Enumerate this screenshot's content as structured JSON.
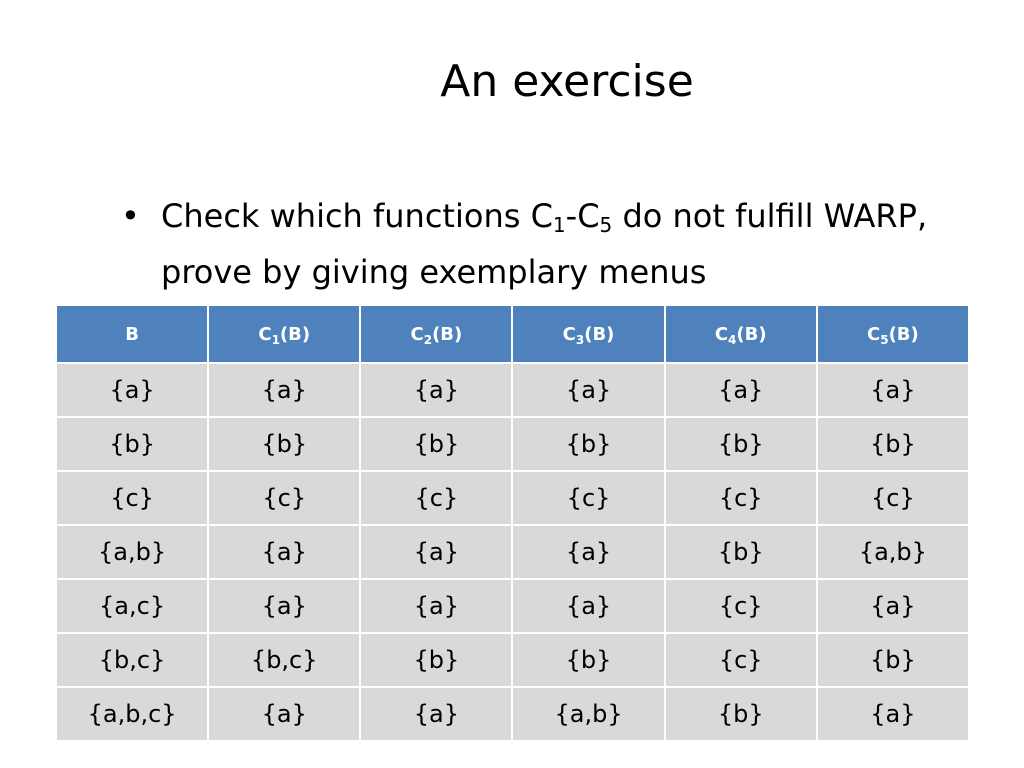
{
  "slide": {
    "title": "An exercise",
    "bullet": {
      "marker": "•",
      "part1": "Check which functions C",
      "sub1": "1",
      "part2": "-C",
      "sub2": "5",
      "part3": " do not fulfill WARP, prove by giving exemplary menus"
    }
  },
  "table": {
    "headers": [
      {
        "main": "B",
        "sub": "",
        "suffix": ""
      },
      {
        "main": "C",
        "sub": "1",
        "suffix": "(B)"
      },
      {
        "main": "C",
        "sub": "2",
        "suffix": "(B)"
      },
      {
        "main": "C",
        "sub": "3",
        "suffix": "(B)"
      },
      {
        "main": "C",
        "sub": "4",
        "suffix": "(B)"
      },
      {
        "main": "C",
        "sub": "5",
        "suffix": "(B)"
      }
    ],
    "rows": [
      [
        "{a}",
        "{a}",
        "{a}",
        "{a}",
        "{a}",
        "{a}"
      ],
      [
        "{b}",
        "{b}",
        "{b}",
        "{b}",
        "{b}",
        "{b}"
      ],
      [
        "{c}",
        "{c}",
        "{c}",
        "{c}",
        "{c}",
        "{c}"
      ],
      [
        "{a,b}",
        "{a}",
        "{a}",
        "{a}",
        "{b}",
        "{a,b}"
      ],
      [
        "{a,c}",
        "{a}",
        "{a}",
        "{a}",
        "{c}",
        "{a}"
      ],
      [
        "{b,c}",
        "{b,c}",
        "{b}",
        "{b}",
        "{c}",
        "{b}"
      ],
      [
        "{a,b,c}",
        "{a}",
        "{a}",
        "{a,b}",
        "{b}",
        "{a}"
      ]
    ]
  }
}
